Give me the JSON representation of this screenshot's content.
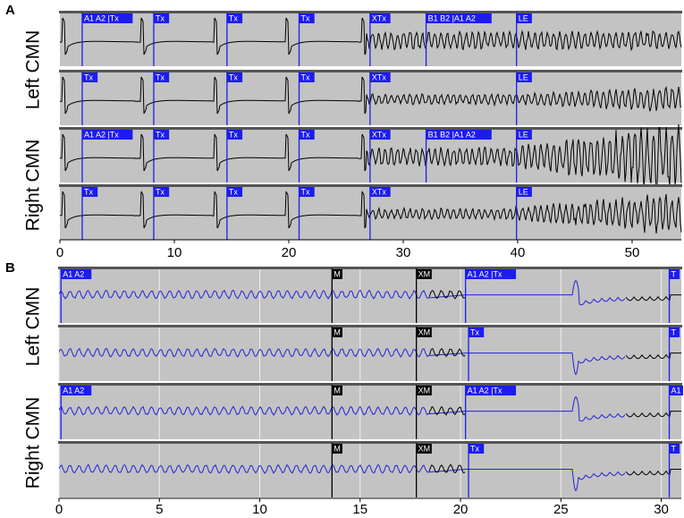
{
  "panels": [
    {
      "label": "A",
      "xlim": [
        0,
        54.3
      ],
      "xticks": [
        0,
        10,
        20,
        30,
        40,
        50
      ],
      "groups": [
        {
          "label": "Left CMN"
        },
        {
          "label": "Right CMN"
        }
      ],
      "rows": [
        {
          "markers": [
            {
              "x": 1.95,
              "label": "A1 A2 |Tx",
              "color": "#1c1cf0"
            },
            {
              "x": 8.2,
              "label": "Tx",
              "color": "#1c1cf0"
            },
            {
              "x": 14.6,
              "label": "Tx",
              "color": "#1c1cf0"
            },
            {
              "x": 20.9,
              "label": "Tx",
              "color": "#1c1cf0"
            },
            {
              "x": 27.1,
              "label": "XTx",
              "color": "#1c1cf0"
            },
            {
              "x": 32.0,
              "label": "B1 B2 |A1 A2",
              "color": "#1c1cf0"
            },
            {
              "x": 39.9,
              "label": "LE",
              "color": "#1c1cf0"
            }
          ]
        },
        {
          "markers": [
            {
              "x": 1.95,
              "label": "Tx",
              "color": "#1c1cf0"
            },
            {
              "x": 8.2,
              "label": "Tx",
              "color": "#1c1cf0"
            },
            {
              "x": 14.6,
              "label": "Tx",
              "color": "#1c1cf0"
            },
            {
              "x": 20.9,
              "label": "Tx",
              "color": "#1c1cf0"
            },
            {
              "x": 27.1,
              "label": "XTx",
              "color": "#1c1cf0"
            },
            {
              "x": 39.9,
              "label": "LE",
              "color": "#1c1cf0"
            }
          ]
        },
        {
          "markers": [
            {
              "x": 1.95,
              "label": "A1 A2 |Tx",
              "color": "#1c1cf0"
            },
            {
              "x": 8.2,
              "label": "Tx",
              "color": "#1c1cf0"
            },
            {
              "x": 14.6,
              "label": "Tx",
              "color": "#1c1cf0"
            },
            {
              "x": 20.9,
              "label": "Tx",
              "color": "#1c1cf0"
            },
            {
              "x": 27.1,
              "label": "XTx",
              "color": "#1c1cf0"
            },
            {
              "x": 32.0,
              "label": "B1 B2 |A1 A2",
              "color": "#1c1cf0"
            },
            {
              "x": 39.9,
              "label": "LE",
              "color": "#1c1cf0"
            }
          ]
        },
        {
          "markers": [
            {
              "x": 1.95,
              "label": "Tx",
              "color": "#1c1cf0"
            },
            {
              "x": 8.2,
              "label": "Tx",
              "color": "#1c1cf0"
            },
            {
              "x": 14.6,
              "label": "Tx",
              "color": "#1c1cf0"
            },
            {
              "x": 20.9,
              "label": "Tx",
              "color": "#1c1cf0"
            },
            {
              "x": 27.1,
              "label": "XTx",
              "color": "#1c1cf0"
            },
            {
              "x": 39.9,
              "label": "LE",
              "color": "#1c1cf0"
            }
          ]
        }
      ]
    },
    {
      "label": "B",
      "xlim": [
        0,
        31
      ],
      "xticks": [
        0,
        5,
        10,
        15,
        20,
        25,
        30
      ],
      "groups": [
        {
          "label": "Left CMN"
        },
        {
          "label": "Right CMN"
        }
      ],
      "rows": [
        {
          "markers": [
            {
              "x": 0.1,
              "label": "A1 A2",
              "color": "#1c1cf0"
            },
            {
              "x": 13.6,
              "label": "M",
              "color": "#000000"
            },
            {
              "x": 17.8,
              "label": "XM",
              "color": "#000000"
            },
            {
              "x": 20.25,
              "label": "A1 A2 |Tx",
              "color": "#1c1cf0"
            },
            {
              "x": 30.4,
              "label": "T",
              "color": "#1c1cf0"
            }
          ]
        },
        {
          "markers": [
            {
              "x": 13.6,
              "label": "M",
              "color": "#000000"
            },
            {
              "x": 17.8,
              "label": "XM",
              "color": "#000000"
            },
            {
              "x": 20.4,
              "label": "Tx",
              "color": "#1c1cf0"
            },
            {
              "x": 30.4,
              "label": "T",
              "color": "#1c1cf0"
            }
          ]
        },
        {
          "markers": [
            {
              "x": 0.1,
              "label": "A1 A2",
              "color": "#1c1cf0"
            },
            {
              "x": 13.6,
              "label": "M",
              "color": "#000000"
            },
            {
              "x": 17.8,
              "label": "XM",
              "color": "#000000"
            },
            {
              "x": 20.25,
              "label": "A1 A2 |Tx",
              "color": "#1c1cf0"
            },
            {
              "x": 30.4,
              "label": "A1",
              "color": "#1c1cf0"
            }
          ]
        },
        {
          "markers": [
            {
              "x": 13.6,
              "label": "M",
              "color": "#000000"
            },
            {
              "x": 17.8,
              "label": "XM",
              "color": "#000000"
            },
            {
              "x": 20.4,
              "label": "Tx",
              "color": "#1c1cf0"
            },
            {
              "x": 30.4,
              "label": "T",
              "color": "#1c1cf0"
            }
          ]
        }
      ]
    }
  ]
}
